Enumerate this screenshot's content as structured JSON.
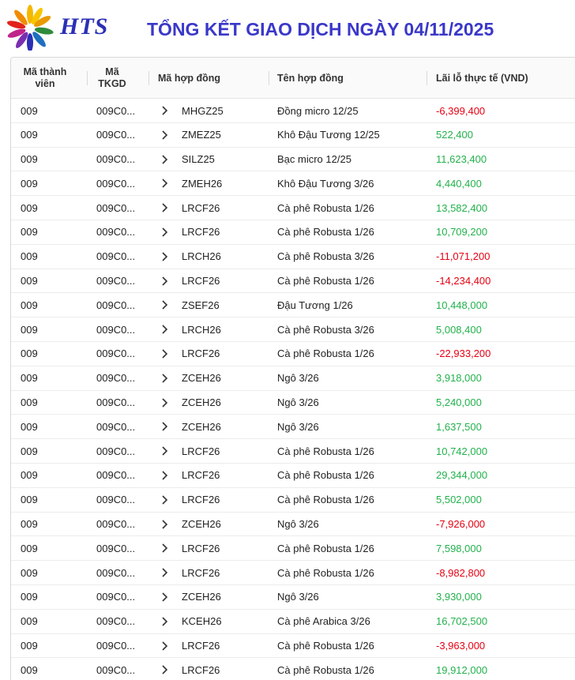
{
  "header": {
    "brand": "HTS",
    "title": "TỔNG KẾT GIAO DỊCH NGÀY 04/11/2025",
    "logo_icon": "sunburst-logo-icon"
  },
  "colors": {
    "positive": "#22b14c",
    "negative": "#e60012",
    "title": "#3a38c8"
  },
  "table": {
    "columns": {
      "member_line1": "Mã thành",
      "member_line2": "viên",
      "account_line1": "Mã",
      "account_line2": "TKGD",
      "contract_code": "Mã hợp đồng",
      "contract_name": "Tên hợp đồng",
      "pnl": "Lãi lỗ thực tế (VND)"
    },
    "expand_icon": "chevron-right-icon",
    "rows": [
      {
        "member": "009",
        "account": "009C0...",
        "code": "MHGZ25",
        "name": "Đồng micro 12/25",
        "pnl": "-6,399,400"
      },
      {
        "member": "009",
        "account": "009C0...",
        "code": "ZMEZ25",
        "name": "Khô Đậu Tương 12/25",
        "pnl": "522,400"
      },
      {
        "member": "009",
        "account": "009C0...",
        "code": "SILZ25",
        "name": "Bạc micro 12/25",
        "pnl": "11,623,400"
      },
      {
        "member": "009",
        "account": "009C0...",
        "code": "ZMEH26",
        "name": "Khô Đậu Tương 3/26",
        "pnl": "4,440,400"
      },
      {
        "member": "009",
        "account": "009C0...",
        "code": "LRCF26",
        "name": "Cà phê Robusta 1/26",
        "pnl": "13,582,400"
      },
      {
        "member": "009",
        "account": "009C0...",
        "code": "LRCF26",
        "name": "Cà phê Robusta 1/26",
        "pnl": "10,709,200"
      },
      {
        "member": "009",
        "account": "009C0...",
        "code": "LRCH26",
        "name": "Cà phê Robusta 3/26",
        "pnl": "-11,071,200"
      },
      {
        "member": "009",
        "account": "009C0...",
        "code": "LRCF26",
        "name": "Cà phê Robusta 1/26",
        "pnl": "-14,234,400"
      },
      {
        "member": "009",
        "account": "009C0...",
        "code": "ZSEF26",
        "name": "Đậu Tương 1/26",
        "pnl": "10,448,000"
      },
      {
        "member": "009",
        "account": "009C0...",
        "code": "LRCH26",
        "name": "Cà phê Robusta 3/26",
        "pnl": "5,008,400"
      },
      {
        "member": "009",
        "account": "009C0...",
        "code": "LRCF26",
        "name": "Cà phê Robusta 1/26",
        "pnl": "-22,933,200"
      },
      {
        "member": "009",
        "account": "009C0...",
        "code": "ZCEH26",
        "name": "Ngô 3/26",
        "pnl": "3,918,000"
      },
      {
        "member": "009",
        "account": "009C0...",
        "code": "ZCEH26",
        "name": "Ngô 3/26",
        "pnl": "5,240,000"
      },
      {
        "member": "009",
        "account": "009C0...",
        "code": "ZCEH26",
        "name": "Ngô 3/26",
        "pnl": "1,637,500"
      },
      {
        "member": "009",
        "account": "009C0...",
        "code": "LRCF26",
        "name": "Cà phê Robusta 1/26",
        "pnl": "10,742,000"
      },
      {
        "member": "009",
        "account": "009C0...",
        "code": "LRCF26",
        "name": "Cà phê Robusta 1/26",
        "pnl": "29,344,000"
      },
      {
        "member": "009",
        "account": "009C0...",
        "code": "LRCF26",
        "name": "Cà phê Robusta 1/26",
        "pnl": "5,502,000"
      },
      {
        "member": "009",
        "account": "009C0...",
        "code": "ZCEH26",
        "name": "Ngô 3/26",
        "pnl": "-7,926,000"
      },
      {
        "member": "009",
        "account": "009C0...",
        "code": "LRCF26",
        "name": "Cà phê Robusta 1/26",
        "pnl": "7,598,000"
      },
      {
        "member": "009",
        "account": "009C0...",
        "code": "LRCF26",
        "name": "Cà phê Robusta 1/26",
        "pnl": "-8,982,800"
      },
      {
        "member": "009",
        "account": "009C0...",
        "code": "ZCEH26",
        "name": "Ngô 3/26",
        "pnl": "3,930,000"
      },
      {
        "member": "009",
        "account": "009C0...",
        "code": "KCEH26",
        "name": "Cà phê Arabica 3/26",
        "pnl": "16,702,500"
      },
      {
        "member": "009",
        "account": "009C0...",
        "code": "LRCF26",
        "name": "Cà phê Robusta 1/26",
        "pnl": "-3,963,000"
      },
      {
        "member": "009",
        "account": "009C0...",
        "code": "LRCF26",
        "name": "Cà phê Robusta 1/26",
        "pnl": "19,912,000"
      }
    ]
  }
}
